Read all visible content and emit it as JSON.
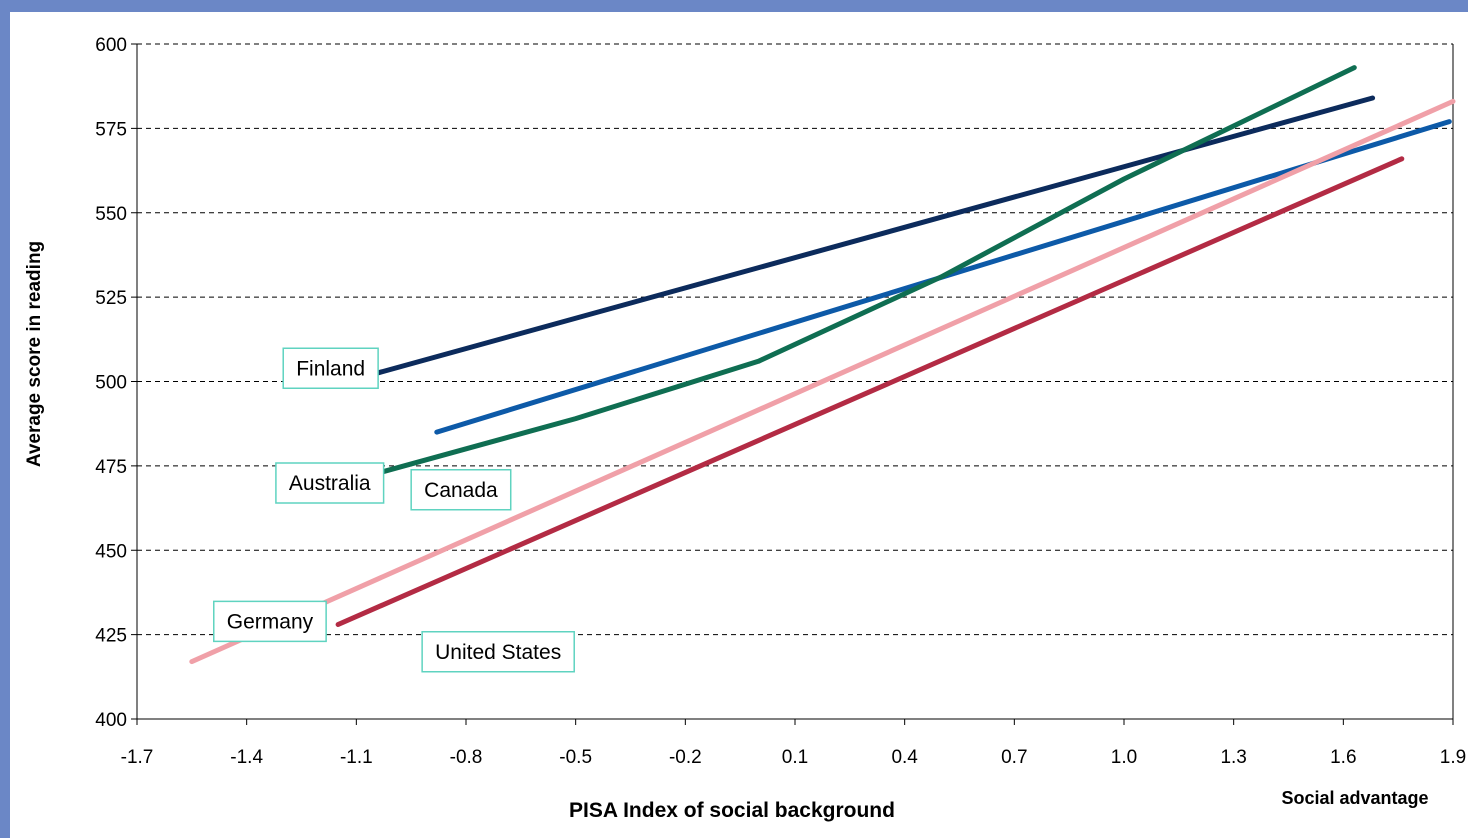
{
  "chart_data": {
    "type": "line",
    "xlabel": "PISA Index of social background",
    "ylabel": "Average score in reading",
    "corner_note": "Social advantage",
    "xlim": [
      -1.7,
      1.9
    ],
    "ylim": [
      400,
      600
    ],
    "x_ticks": [
      "-1.7",
      "-1.4",
      "-1.1",
      "-0.8",
      "-0.5",
      "-0.2",
      "0.1",
      "0.4",
      "0.7",
      "1.0",
      "1.3",
      "1.6",
      "1.9"
    ],
    "y_ticks": [
      "400",
      "425",
      "450",
      "475",
      "500",
      "525",
      "550",
      "575",
      "600"
    ],
    "grid": "horizontal-dashed",
    "series": [
      {
        "name": "Finland",
        "color": "#0c2b5c",
        "x": [
          -1.06,
          1.68
        ],
        "y": [
          502,
          584
        ]
      },
      {
        "name": "Canada",
        "color": "#0d5aa8",
        "x": [
          -0.88,
          1.89
        ],
        "y": [
          485,
          577
        ]
      },
      {
        "name": "Australia",
        "color": "#0f6e52",
        "x": [
          -1.07,
          -0.5,
          0.0,
          0.5,
          1.0,
          1.63
        ],
        "y": [
          472,
          489,
          506,
          531,
          560,
          593
        ]
      },
      {
        "name": "Germany",
        "color": "#f0a0a8",
        "x": [
          -1.55,
          1.9
        ],
        "y": [
          417,
          583
        ]
      },
      {
        "name": "United States",
        "color": "#b32b44",
        "x": [
          -1.15,
          1.76
        ],
        "y": [
          428,
          566
        ]
      }
    ],
    "labels": [
      {
        "name": "Finland",
        "x": -1.3,
        "y": 498
      },
      {
        "name": "Canada",
        "x": -0.95,
        "y": 462
      },
      {
        "name": "Australia",
        "x": -1.32,
        "y": 464
      },
      {
        "name": "Germany",
        "x": -1.49,
        "y": 423
      },
      {
        "name": "United States",
        "x": -0.92,
        "y": 414
      }
    ]
  }
}
